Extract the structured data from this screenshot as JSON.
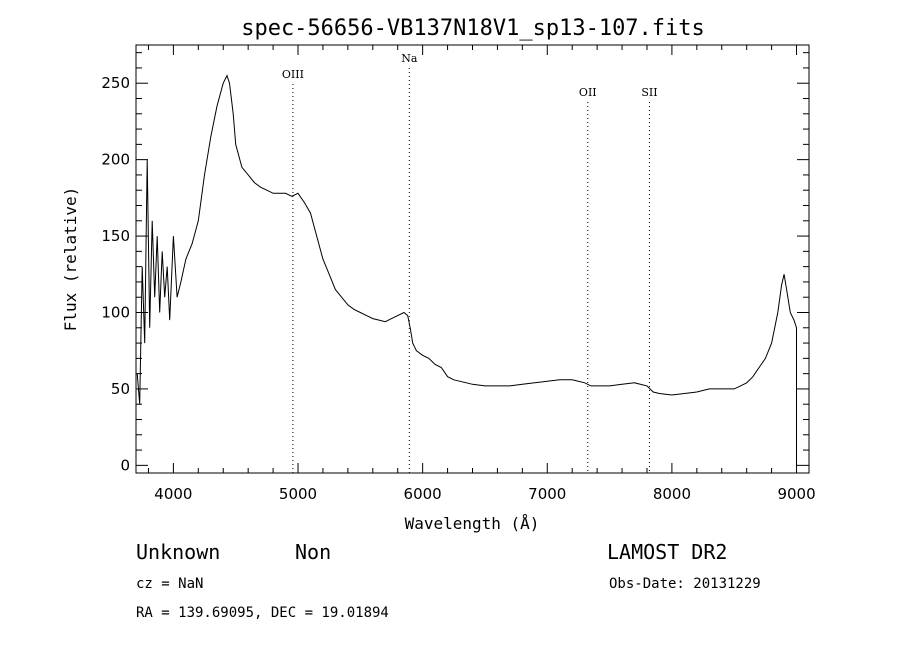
{
  "chart_data": {
    "type": "line",
    "title": "spec-56656-VB137N18V1_sp13-107.fits",
    "xlabel": "Wavelength (Å)",
    "ylabel": "Flux (relative)",
    "xlim": [
      3700,
      9100
    ],
    "ylim": [
      -5,
      275
    ],
    "x_ticks": [
      4000,
      5000,
      6000,
      7000,
      8000,
      9000
    ],
    "y_ticks": [
      0,
      50,
      100,
      150,
      200,
      250
    ],
    "grid": false,
    "legend": "none",
    "line_color": "#000000",
    "spectral_lines": [
      {
        "label": "OIII",
        "wavelength": 4959
      },
      {
        "label": "Na",
        "wavelength": 5893
      },
      {
        "label": "OII",
        "wavelength": 7325
      },
      {
        "label": "SII",
        "wavelength": 7820
      }
    ],
    "series": [
      {
        "x": [
          3710,
          3730,
          3750,
          3770,
          3790,
          3810,
          3830,
          3850,
          3870,
          3890,
          3910,
          3930,
          3950,
          3970,
          4000,
          4030,
          4060,
          4100,
          4150,
          4200,
          4250,
          4300,
          4350,
          4400,
          4430,
          4450,
          4480,
          4500,
          4550,
          4600,
          4650,
          4700,
          4750,
          4800,
          4850,
          4900,
          4950,
          5000,
          5050,
          5100,
          5150,
          5200,
          5250,
          5300,
          5350,
          5400,
          5450,
          5500,
          5550,
          5600,
          5650,
          5700,
          5750,
          5800,
          5850,
          5880,
          5900,
          5920,
          5950,
          6000,
          6050,
          6100,
          6150,
          6200,
          6250,
          6300,
          6400,
          6500,
          6600,
          6700,
          6800,
          6900,
          7000,
          7100,
          7200,
          7300,
          7350,
          7400,
          7500,
          7600,
          7700,
          7800,
          7850,
          7900,
          8000,
          8100,
          8200,
          8300,
          8400,
          8500,
          8550,
          8600,
          8650,
          8700,
          8750,
          8800,
          8850,
          8880,
          8900,
          8920,
          8950,
          8980,
          9000
        ],
        "y": [
          60,
          40,
          130,
          80,
          200,
          90,
          160,
          110,
          150,
          100,
          140,
          110,
          130,
          95,
          150,
          110,
          120,
          135,
          145,
          160,
          190,
          215,
          235,
          250,
          255,
          250,
          230,
          210,
          195,
          190,
          185,
          182,
          180,
          178,
          178,
          178,
          176,
          178,
          172,
          165,
          150,
          135,
          125,
          115,
          110,
          105,
          102,
          100,
          98,
          96,
          95,
          94,
          96,
          98,
          100,
          98,
          90,
          80,
          75,
          72,
          70,
          66,
          64,
          58,
          56,
          55,
          53,
          52,
          52,
          52,
          53,
          54,
          55,
          56,
          56,
          54,
          52,
          52,
          52,
          53,
          54,
          52,
          48,
          47,
          46,
          47,
          48,
          50,
          50,
          50,
          52,
          54,
          58,
          64,
          70,
          80,
          100,
          118,
          125,
          115,
          100,
          95,
          90
        ]
      }
    ],
    "annotations": {
      "object_class": "Unknown",
      "subclass": "Non",
      "survey": "LAMOST DR2",
      "cz": "cz = NaN",
      "obs_date": "Obs-Date: 20131229",
      "coords": "RA = 139.69095, DEC =  19.01894"
    }
  }
}
